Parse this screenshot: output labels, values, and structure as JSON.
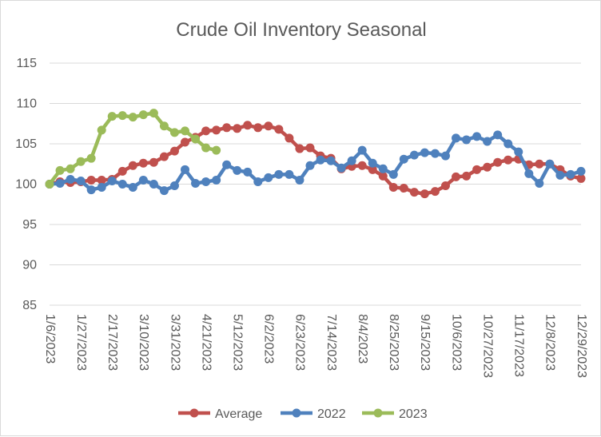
{
  "chart_data": {
    "type": "line",
    "title": "Crude Oil Inventory Seasonal",
    "xlabel": "",
    "ylabel": "",
    "ylim": [
      85,
      115
    ],
    "yticks": [
      "85",
      "90",
      "95",
      "100",
      "105",
      "110",
      "115"
    ],
    "xtick_labels": [
      "1/6/2023",
      "1/27/2023",
      "2/17/2023",
      "3/10/2023",
      "3/31/2023",
      "4/21/2023",
      "5/12/2023",
      "6/2/2023",
      "6/23/2023",
      "7/14/2023",
      "8/4/2023",
      "8/25/2023",
      "9/15/2023",
      "10/6/2023",
      "10/27/2023",
      "11/17/2023",
      "12/8/2023",
      "12/29/2023"
    ],
    "num_weeks": 52,
    "grid": true,
    "legend": "bottom",
    "series": [
      {
        "name": "Average",
        "color": "#C0504D",
        "values": [
          100.0,
          100.3,
          100.2,
          100.3,
          100.5,
          100.5,
          100.6,
          101.6,
          102.3,
          102.6,
          102.7,
          103.4,
          104.1,
          105.2,
          105.8,
          106.6,
          106.7,
          107.0,
          106.9,
          107.3,
          107.0,
          107.2,
          106.8,
          105.7,
          104.4,
          104.5,
          103.5,
          103.2,
          101.9,
          102.2,
          102.3,
          101.8,
          101.0,
          99.6,
          99.5,
          99.0,
          98.8,
          99.1,
          99.8,
          100.9,
          101.0,
          101.8,
          102.1,
          102.7,
          103.0,
          103.1,
          102.4,
          102.5,
          102.5,
          101.8,
          101.0,
          100.7
        ]
      },
      {
        "name": "2022",
        "color": "#4F81BD",
        "values": [
          100.0,
          100.1,
          100.6,
          100.4,
          99.3,
          99.6,
          100.4,
          100.0,
          99.6,
          100.5,
          100.0,
          99.2,
          99.8,
          101.8,
          100.1,
          100.3,
          100.5,
          102.4,
          101.7,
          101.5,
          100.3,
          100.8,
          101.2,
          101.2,
          100.5,
          102.3,
          103.0,
          102.9,
          102.0,
          102.9,
          104.2,
          102.6,
          101.9,
          101.2,
          103.1,
          103.6,
          103.9,
          103.8,
          103.5,
          105.7,
          105.5,
          105.9,
          105.3,
          106.1,
          105.0,
          104.0,
          101.3,
          100.1,
          102.5,
          101.1,
          101.2,
          101.6
        ]
      },
      {
        "name": "2023",
        "color": "#9BBB59",
        "values": [
          100.0,
          101.7,
          101.9,
          102.8,
          103.2,
          106.7,
          108.4,
          108.5,
          108.3,
          108.6,
          108.8,
          107.2,
          106.4,
          106.6,
          105.6,
          104.5,
          104.2
        ]
      }
    ]
  }
}
